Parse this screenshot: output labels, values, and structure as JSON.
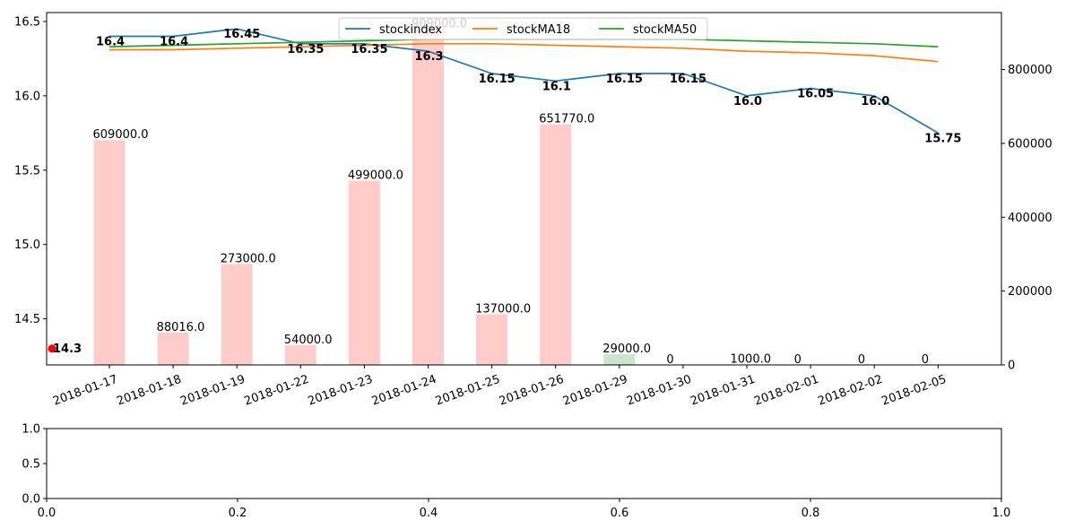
{
  "chart_data": [
    {
      "type": "bar+line",
      "title": "",
      "xlabel": "",
      "ylabel": "",
      "categories": [
        "2018-01-17",
        "2018-01-18",
        "2018-01-19",
        "2018-01-22",
        "2018-01-23",
        "2018-01-24",
        "2018-01-25",
        "2018-01-26",
        "2018-01-29",
        "2018-01-30",
        "2018-01-31",
        "2018-02-01",
        "2018-02-02",
        "2018-02-05"
      ],
      "ylim_left": [
        14.19,
        16.56
      ],
      "ylim_right": [
        0,
        954450
      ],
      "left_ticks": [
        "14.5",
        "15.0",
        "15.5",
        "16.0",
        "16.5"
      ],
      "right_ticks": [
        "0",
        "200000",
        "400000",
        "600000",
        "800000"
      ],
      "legend": {
        "placement": "upper center"
      },
      "series": [
        {
          "name": "stockindex",
          "axis": "left",
          "kind": "line",
          "color": "#1f77b4",
          "values": [
            16.4,
            16.4,
            16.45,
            16.35,
            16.35,
            16.3,
            16.15,
            16.1,
            16.15,
            16.15,
            16.0,
            16.05,
            16.0,
            15.75
          ],
          "labels": [
            "16.4",
            "16.4",
            "16.45",
            "16.35",
            "16.35",
            "16.3",
            "16.15",
            "16.1",
            "16.15",
            "16.15",
            "16.0",
            "16.05",
            "16.0",
            "15.75"
          ]
        },
        {
          "name": "stockMA18",
          "axis": "left",
          "kind": "line",
          "color": "#ff7f0e",
          "values": [
            16.31,
            16.31,
            16.32,
            16.33,
            16.34,
            16.35,
            16.35,
            16.34,
            16.33,
            16.32,
            16.3,
            16.29,
            16.27,
            16.23
          ]
        },
        {
          "name": "stockMA50",
          "axis": "left",
          "kind": "line",
          "color": "#2ca02c",
          "values": [
            16.33,
            16.34,
            16.35,
            16.36,
            16.37,
            16.38,
            16.38,
            16.38,
            16.38,
            16.38,
            16.37,
            16.36,
            16.35,
            16.33
          ]
        },
        {
          "name": "",
          "axis": "right",
          "kind": "bar",
          "values": [
            609000,
            88016,
            273000,
            54000,
            499000,
            909000,
            137000,
            651770,
            29000,
            0,
            1000,
            0,
            0,
            0
          ],
          "labels": [
            "609000.0",
            "88016.0",
            "273000.0",
            "54000.0",
            "499000.0",
            "909000.0",
            "137000.0",
            "651770.0",
            "29000.0",
            "0",
            "1000.0",
            "0",
            "0",
            "0"
          ],
          "colors": [
            "#ffcccc",
            "#ffcccc",
            "#ffcccc",
            "#ffcccc",
            "#ffcccc",
            "#ffcccc",
            "#ffcccc",
            "#ffcccc",
            "#cce5cc",
            "#ffcccc",
            "#ffcccc",
            "#ffcccc",
            "#ffcccc",
            "#ffcccc"
          ]
        }
      ],
      "annotation": {
        "x_index": -0.9,
        "value": 14.3,
        "label": "14.3",
        "color": "#ff0000"
      }
    },
    {
      "type": "empty",
      "xlim": [
        0,
        1
      ],
      "ylim": [
        0,
        1
      ],
      "x_ticks": [
        "0.0",
        "0.2",
        "0.4",
        "0.6",
        "0.8",
        "1.0"
      ],
      "y_ticks": [
        "0.0",
        "0.5",
        "1.0"
      ]
    }
  ]
}
